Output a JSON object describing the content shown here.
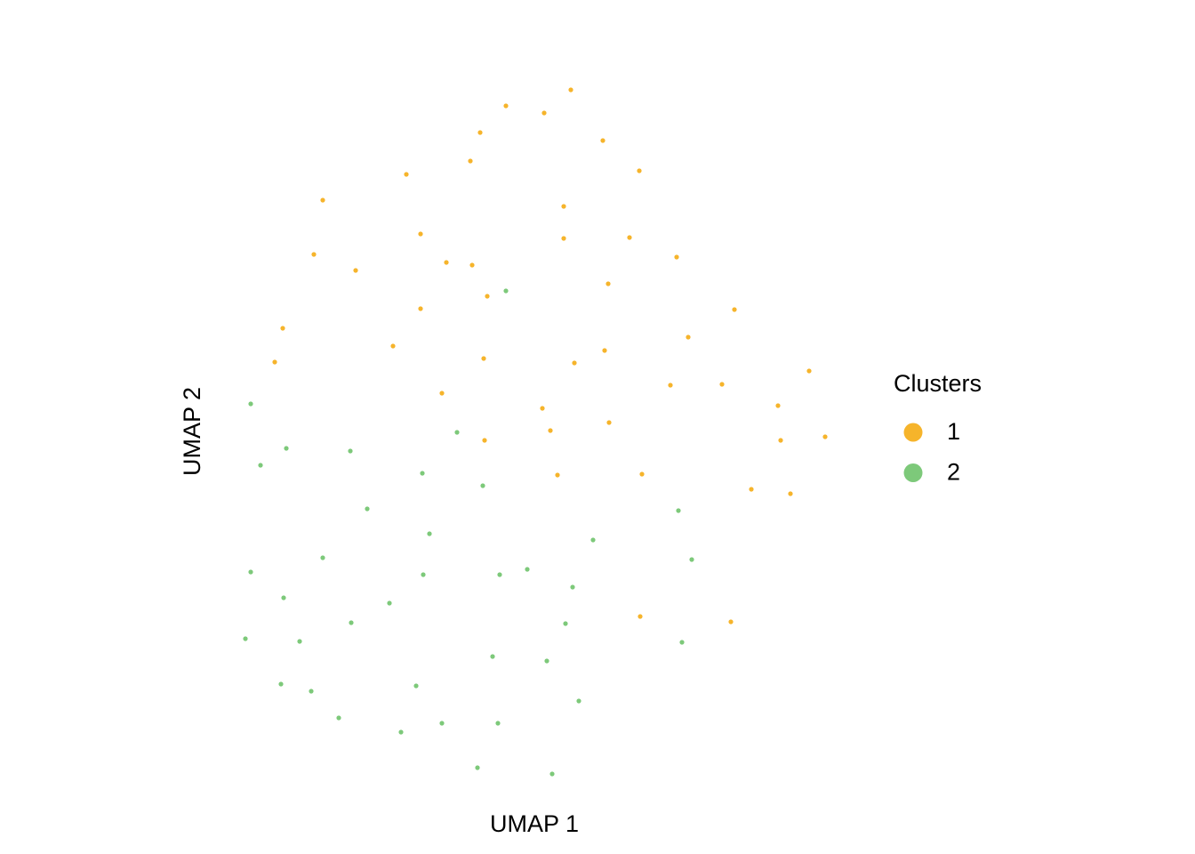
{
  "chart_data": {
    "type": "scatter",
    "xlabel": "UMAP 1",
    "ylabel": "UMAP 2",
    "legend_title": "Clusters",
    "legend_position": "right",
    "xlim": [
      -6.8,
      6.8
    ],
    "ylim": [
      -7.6,
      8.2
    ],
    "grid": false,
    "series": [
      {
        "name": "1",
        "color": "#f6b42b",
        "x": [
          0.84,
          -0.62,
          0.24,
          -1.2,
          1.56,
          -1.42,
          2.38,
          -2.86,
          -4.74,
          0.68,
          -2.54,
          0.68,
          2.16,
          -4.94,
          -1.96,
          -1.38,
          3.22,
          -4,
          1.68,
          -1.04,
          -2.54,
          4.52,
          -5.64,
          3.48,
          -3.16,
          1.6,
          -1.12,
          -5.82,
          0.92,
          6.2,
          3.08,
          4.24,
          -2.06,
          0.2,
          5.5,
          1.7,
          0.38,
          5.56,
          6.56,
          -1.1,
          0.54,
          2.44,
          4.9,
          5.78,
          2.4,
          4.44
        ],
        "values": [
          7.98,
          7.62,
          7.46,
          7.02,
          6.84,
          6.38,
          6.16,
          6.08,
          5.5,
          5.36,
          4.74,
          4.64,
          4.66,
          4.28,
          4.1,
          4.04,
          4.22,
          3.92,
          3.62,
          3.34,
          3.06,
          3.04,
          2.62,
          2.42,
          2.22,
          2.12,
          1.94,
          1.86,
          1.84,
          1.66,
          1.34,
          1.36,
          1.16,
          0.82,
          0.88,
          0.5,
          0.32,
          0.1,
          0.18,
          0.1,
          -0.68,
          -0.66,
          -1,
          -1.1,
          -3.86,
          -3.98
        ]
      },
      {
        "name": "2",
        "color": "#7dc97a",
        "x": [
          -0.62,
          -6.36,
          -1.72,
          -5.56,
          -4.12,
          -6.14,
          -2.5,
          -1.14,
          -3.74,
          3.26,
          -2.34,
          1.34,
          -4.74,
          3.56,
          -6.36,
          -2.48,
          -0.76,
          -0.14,
          0.88,
          -5.62,
          -3.24,
          -4.1,
          0.72,
          -6.48,
          -5.26,
          3.34,
          -0.92,
          0.3,
          -5.68,
          -2.64,
          -5,
          1.02,
          -4.38,
          -2.06,
          -0.8,
          -2.98,
          -1.26,
          0.42
        ],
        "values": [
          3.46,
          0.92,
          0.28,
          -0.08,
          -0.14,
          -0.46,
          -0.64,
          -0.92,
          -1.44,
          -1.48,
          -2,
          -2.14,
          -2.54,
          -2.58,
          -2.86,
          -2.92,
          -2.92,
          -2.8,
          -3.2,
          -3.44,
          -3.56,
          -4,
          -4.02,
          -4.36,
          -4.42,
          -4.44,
          -4.76,
          -4.86,
          -5.38,
          -5.42,
          -5.54,
          -5.76,
          -6.14,
          -6.26,
          -6.26,
          -6.46,
          -7.26,
          -7.4
        ]
      }
    ]
  }
}
